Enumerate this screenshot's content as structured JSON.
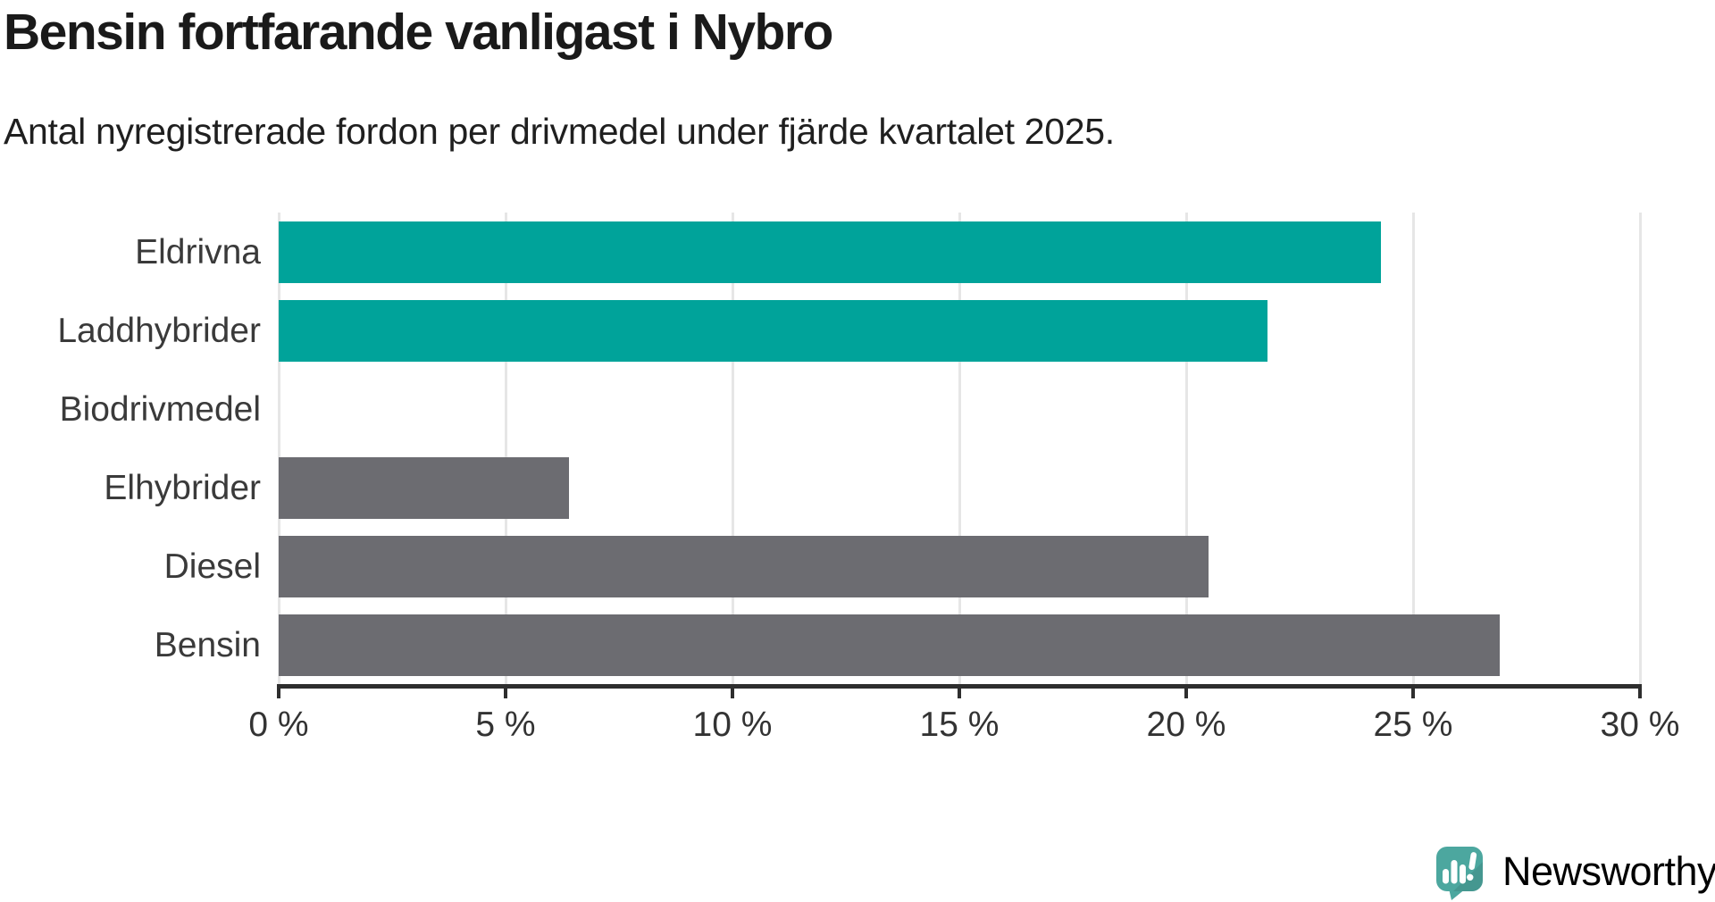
{
  "header": {
    "title": "Bensin fortfarande vanligast i Nybro",
    "subtitle": "Antal nyregistrerade fordon per drivmedel under fjärde kvartalet 2025."
  },
  "chart_data": {
    "type": "bar",
    "orientation": "horizontal",
    "title": "Bensin fortfarande vanligast i Nybro",
    "xlabel": "",
    "ylabel": "",
    "unit": "%",
    "categories": [
      "Eldrivna",
      "Laddhybrider",
      "Biodrivmedel",
      "Elhybrider",
      "Diesel",
      "Bensin"
    ],
    "values": [
      24.3,
      21.8,
      0,
      6.4,
      20.5,
      26.9
    ],
    "bar_colors": [
      "#00a39a",
      "#00a39a",
      "#00a39a",
      "#6c6c71",
      "#6c6c71",
      "#6c6c71"
    ],
    "highlight_color": "#00a39a",
    "default_color": "#6c6c71",
    "xlim": [
      0,
      30
    ],
    "x_ticks": [
      0,
      5,
      10,
      15,
      20,
      25,
      30
    ],
    "x_tick_labels": [
      "0 %",
      "5 %",
      "10 %",
      "15 %",
      "20 %",
      "25 %",
      "30 %"
    ],
    "grid": "vertical-light",
    "legend": "none"
  },
  "footer": {
    "brand": "Newsworthy",
    "brand_color": "#46a39b",
    "logo_icon": "newsworthy-speech-bubble-bar-chart-icon",
    "logo_icon_color": "#4ca79f"
  }
}
